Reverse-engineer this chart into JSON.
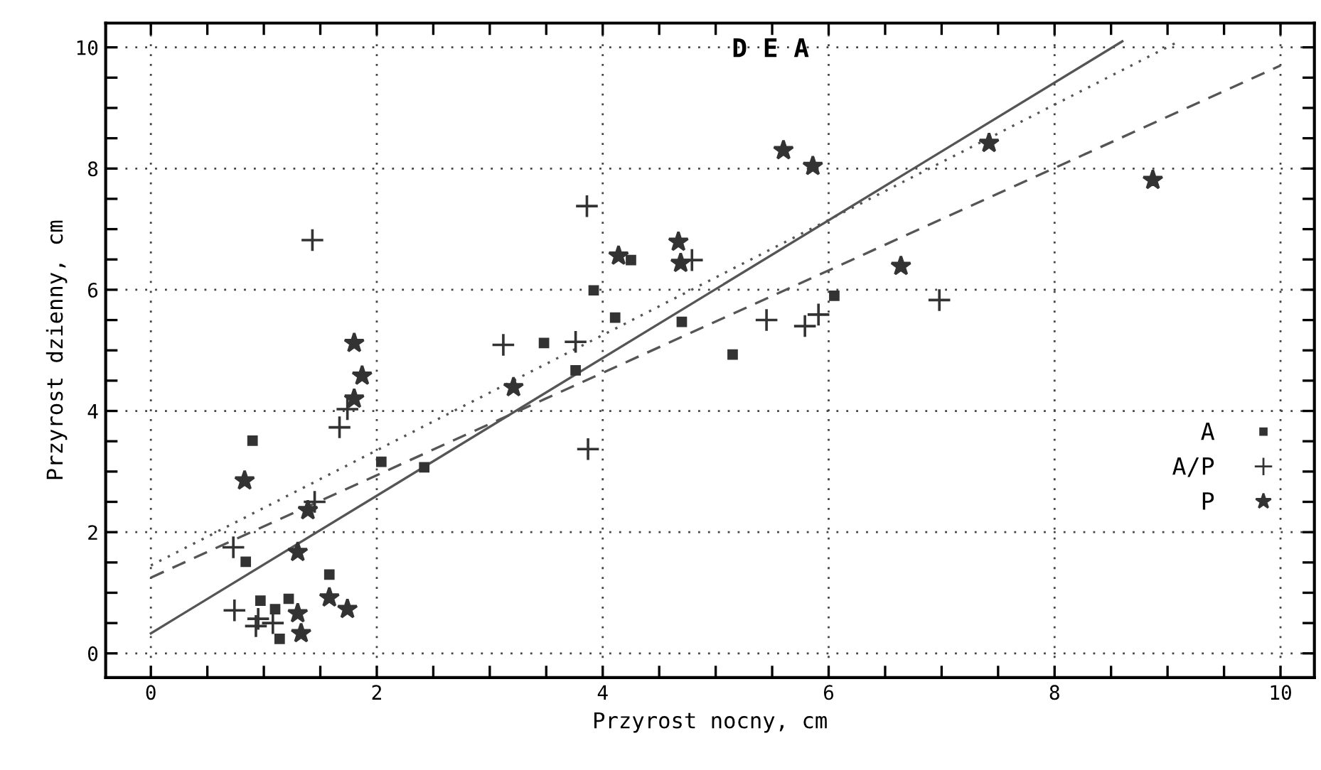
{
  "chart_data": {
    "type": "scatter",
    "title": "D E A",
    "xlabel": "Przyrost nocny, cm",
    "ylabel": "Przyrost dzienny, cm",
    "xlim": [
      -0.4,
      10.3
    ],
    "ylim": [
      -0.4,
      10.4
    ],
    "xticks": [
      0,
      {
        "value": 0.5,
        "label": null
      },
      {
        "value": 1,
        "label": null
      },
      {
        "value": 1.5,
        "label": null
      },
      2,
      {
        "value": 2.5,
        "label": null
      },
      {
        "value": 3,
        "label": null
      },
      {
        "value": 3.5,
        "label": null
      },
      4,
      {
        "value": 4.5,
        "label": null
      },
      {
        "value": 5,
        "label": null
      },
      {
        "value": 5.5,
        "label": null
      },
      6,
      {
        "value": 6.5,
        "label": null
      },
      {
        "value": 7,
        "label": null
      },
      {
        "value": 7.5,
        "label": null
      },
      8,
      {
        "value": 8.5,
        "label": null
      },
      {
        "value": 9,
        "label": null
      },
      {
        "value": 9.5,
        "label": null
      },
      10
    ],
    "yticks": [
      0,
      {
        "value": 0.5,
        "label": null
      },
      {
        "value": 1,
        "label": null
      },
      {
        "value": 1.5,
        "label": null
      },
      2,
      {
        "value": 2.5,
        "label": null
      },
      {
        "value": 3,
        "label": null
      },
      {
        "value": 3.5,
        "label": null
      },
      4,
      {
        "value": 4.5,
        "label": null
      },
      {
        "value": 5,
        "label": null
      },
      {
        "value": 5.5,
        "label": null
      },
      6,
      {
        "value": 6.5,
        "label": null
      },
      {
        "value": 7,
        "label": null
      },
      {
        "value": 7.5,
        "label": null
      },
      8,
      {
        "value": 8.5,
        "label": null
      },
      {
        "value": 9,
        "label": null
      },
      {
        "value": 9.5,
        "label": null
      },
      10
    ],
    "grid": true,
    "legend": "right",
    "series": [
      {
        "name": "A",
        "marker": "square",
        "color": "#333333",
        "x": [
          0.9,
          0.84,
          2.42,
          1.58,
          0.97,
          1.1,
          1.22,
          1.14,
          2.04,
          3.92,
          4.25,
          4.11,
          3.48,
          3.76,
          4.7,
          5.15,
          6.05
        ],
        "values": [
          3.51,
          1.51,
          3.07,
          1.3,
          0.87,
          0.73,
          0.9,
          0.24,
          3.16,
          5.99,
          6.49,
          5.54,
          5.12,
          4.67,
          5.47,
          4.93,
          5.9
        ]
      },
      {
        "name": "A/P",
        "marker": "cross",
        "color": "#333333",
        "x": [
          1.43,
          3.12,
          3.86,
          3.76,
          3.87,
          4.79,
          5.45,
          5.79,
          5.91,
          6.98,
          1.67,
          1.74,
          0.73,
          0.74,
          0.95,
          0.93,
          1.08,
          1.45
        ],
        "values": [
          6.82,
          5.09,
          7.38,
          5.14,
          3.37,
          6.49,
          5.5,
          5.4,
          5.59,
          5.83,
          3.73,
          4.03,
          1.75,
          0.71,
          0.57,
          0.45,
          0.5,
          2.5
        ]
      },
      {
        "name": "P",
        "marker": "star",
        "color": "#333333",
        "x": [
          0.83,
          1.39,
          1.3,
          1.58,
          1.74,
          1.3,
          1.33,
          1.8,
          1.87,
          1.8,
          3.21,
          4.14,
          4.67,
          4.69,
          6.64,
          7.42,
          8.87,
          5.6,
          5.86
        ],
        "values": [
          2.85,
          2.36,
          1.67,
          0.92,
          0.73,
          0.66,
          0.33,
          5.12,
          4.58,
          4.2,
          4.39,
          6.56,
          6.79,
          6.44,
          6.39,
          8.42,
          7.81,
          8.3,
          8.04
        ]
      },
      {
        "type": "line",
        "line_style": "solid",
        "color": "#555555",
        "x": [
          0,
          8.6
        ],
        "values": [
          0.33,
          10.1
        ]
      },
      {
        "type": "line",
        "line_style": "dashed",
        "color": "#555555",
        "x": [
          0,
          10
        ],
        "values": [
          1.25,
          9.7
        ]
      },
      {
        "type": "line",
        "line_style": "dotted",
        "color": "#555555",
        "x": [
          0,
          9.1
        ],
        "values": [
          1.45,
          10.1
        ]
      }
    ]
  }
}
